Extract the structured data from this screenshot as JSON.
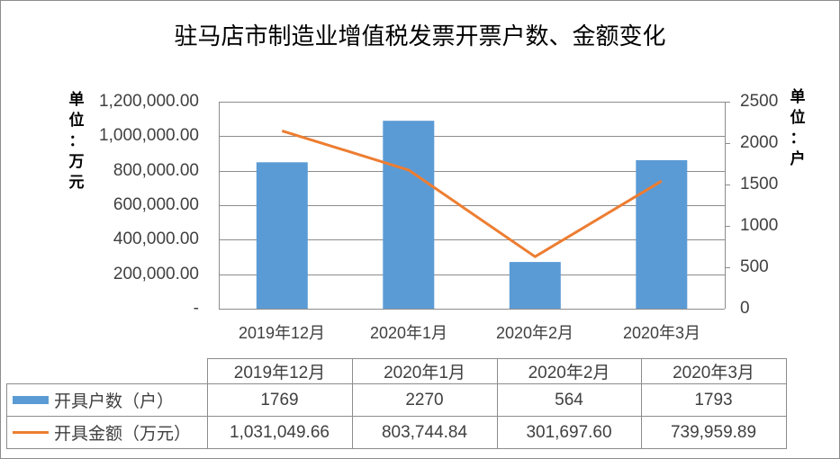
{
  "title": "驻马店市制造业增值税发票开票户数、金额变化",
  "left_axis": {
    "unit_label": [
      "单",
      "位",
      "：",
      "万",
      "元"
    ],
    "ticks": [
      "1,200,000.00",
      "1,000,000.00",
      "800,000.00",
      "600,000.00",
      "400,000.00",
      "200,000.00",
      "-"
    ]
  },
  "right_axis": {
    "unit_label": [
      "单",
      "位",
      "：",
      "户"
    ],
    "ticks": [
      "2500",
      "2000",
      "1500",
      "1000",
      "500",
      "0"
    ]
  },
  "colors": {
    "bar": "#5b9bd5",
    "line": "#ed7d31",
    "grid": "#8c8c8c"
  },
  "table": {
    "header": [
      "2019年12月",
      "2020年1月",
      "2020年2月",
      "2020年3月"
    ],
    "rows": [
      {
        "label": "开具户数（户）",
        "values": [
          "1769",
          "2270",
          "564",
          "1793"
        ]
      },
      {
        "label": "开具金额（万元）",
        "values": [
          "1,031,049.66",
          "803,744.84",
          "301,697.60",
          "739,959.89"
        ]
      }
    ]
  },
  "chart_data": {
    "type": "bar",
    "title": "驻马店市制造业增值税发票开票户数、金额变化",
    "categories": [
      "2019年12月",
      "2020年1月",
      "2020年2月",
      "2020年3月"
    ],
    "series": [
      {
        "name": "开具户数（户）",
        "type": "bar",
        "axis": "right",
        "values": [
          1769,
          2270,
          564,
          1793
        ]
      },
      {
        "name": "开具金额（万元）",
        "type": "line",
        "axis": "left",
        "values": [
          1031049.66,
          803744.84,
          301697.6,
          739959.89
        ]
      }
    ],
    "xlabel": "",
    "ylabel": "单位：万元",
    "y2label": "单位：户",
    "ylim": [
      0,
      1200000
    ],
    "y2lim": [
      0,
      2500
    ],
    "grid": true,
    "legend_position": "data-table"
  }
}
